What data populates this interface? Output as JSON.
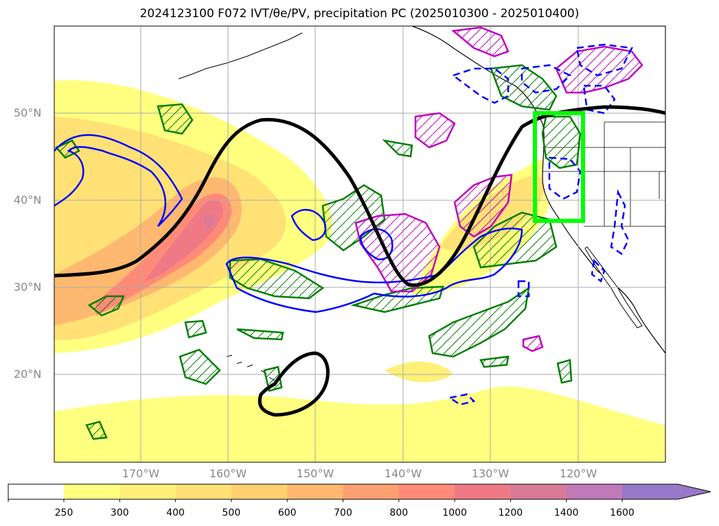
{
  "title": "2024123100 F072 IVT/θe/PV, precipitation PC (2025010300 - 2025010400)",
  "map": {
    "latitude_labels": [
      "50°N",
      "40°N",
      "30°N",
      "20°N"
    ],
    "longitude_labels": [
      "170°W",
      "160°W",
      "150°W",
      "140°W",
      "130°W",
      "120°W"
    ],
    "highlight_box_color": "#00ff00",
    "contour_colors": {
      "black_contour": "#000000",
      "blue": "#0000ff",
      "green": "#007f00",
      "magenta": "#bf00bf"
    }
  },
  "colorbar": {
    "extend": "max",
    "levels": [
      "250",
      "300",
      "400",
      "500",
      "600",
      "700",
      "800",
      "1000",
      "1200",
      "1400",
      "1600"
    ],
    "colors": [
      "#ffff80",
      "#fff07a",
      "#ffe175",
      "#ffd070",
      "#ffb870",
      "#ffa070",
      "#ff8a78",
      "#ef7a86",
      "#d97a98",
      "#c07ab8",
      "#a57cc8",
      "#9878c8"
    ]
  }
}
